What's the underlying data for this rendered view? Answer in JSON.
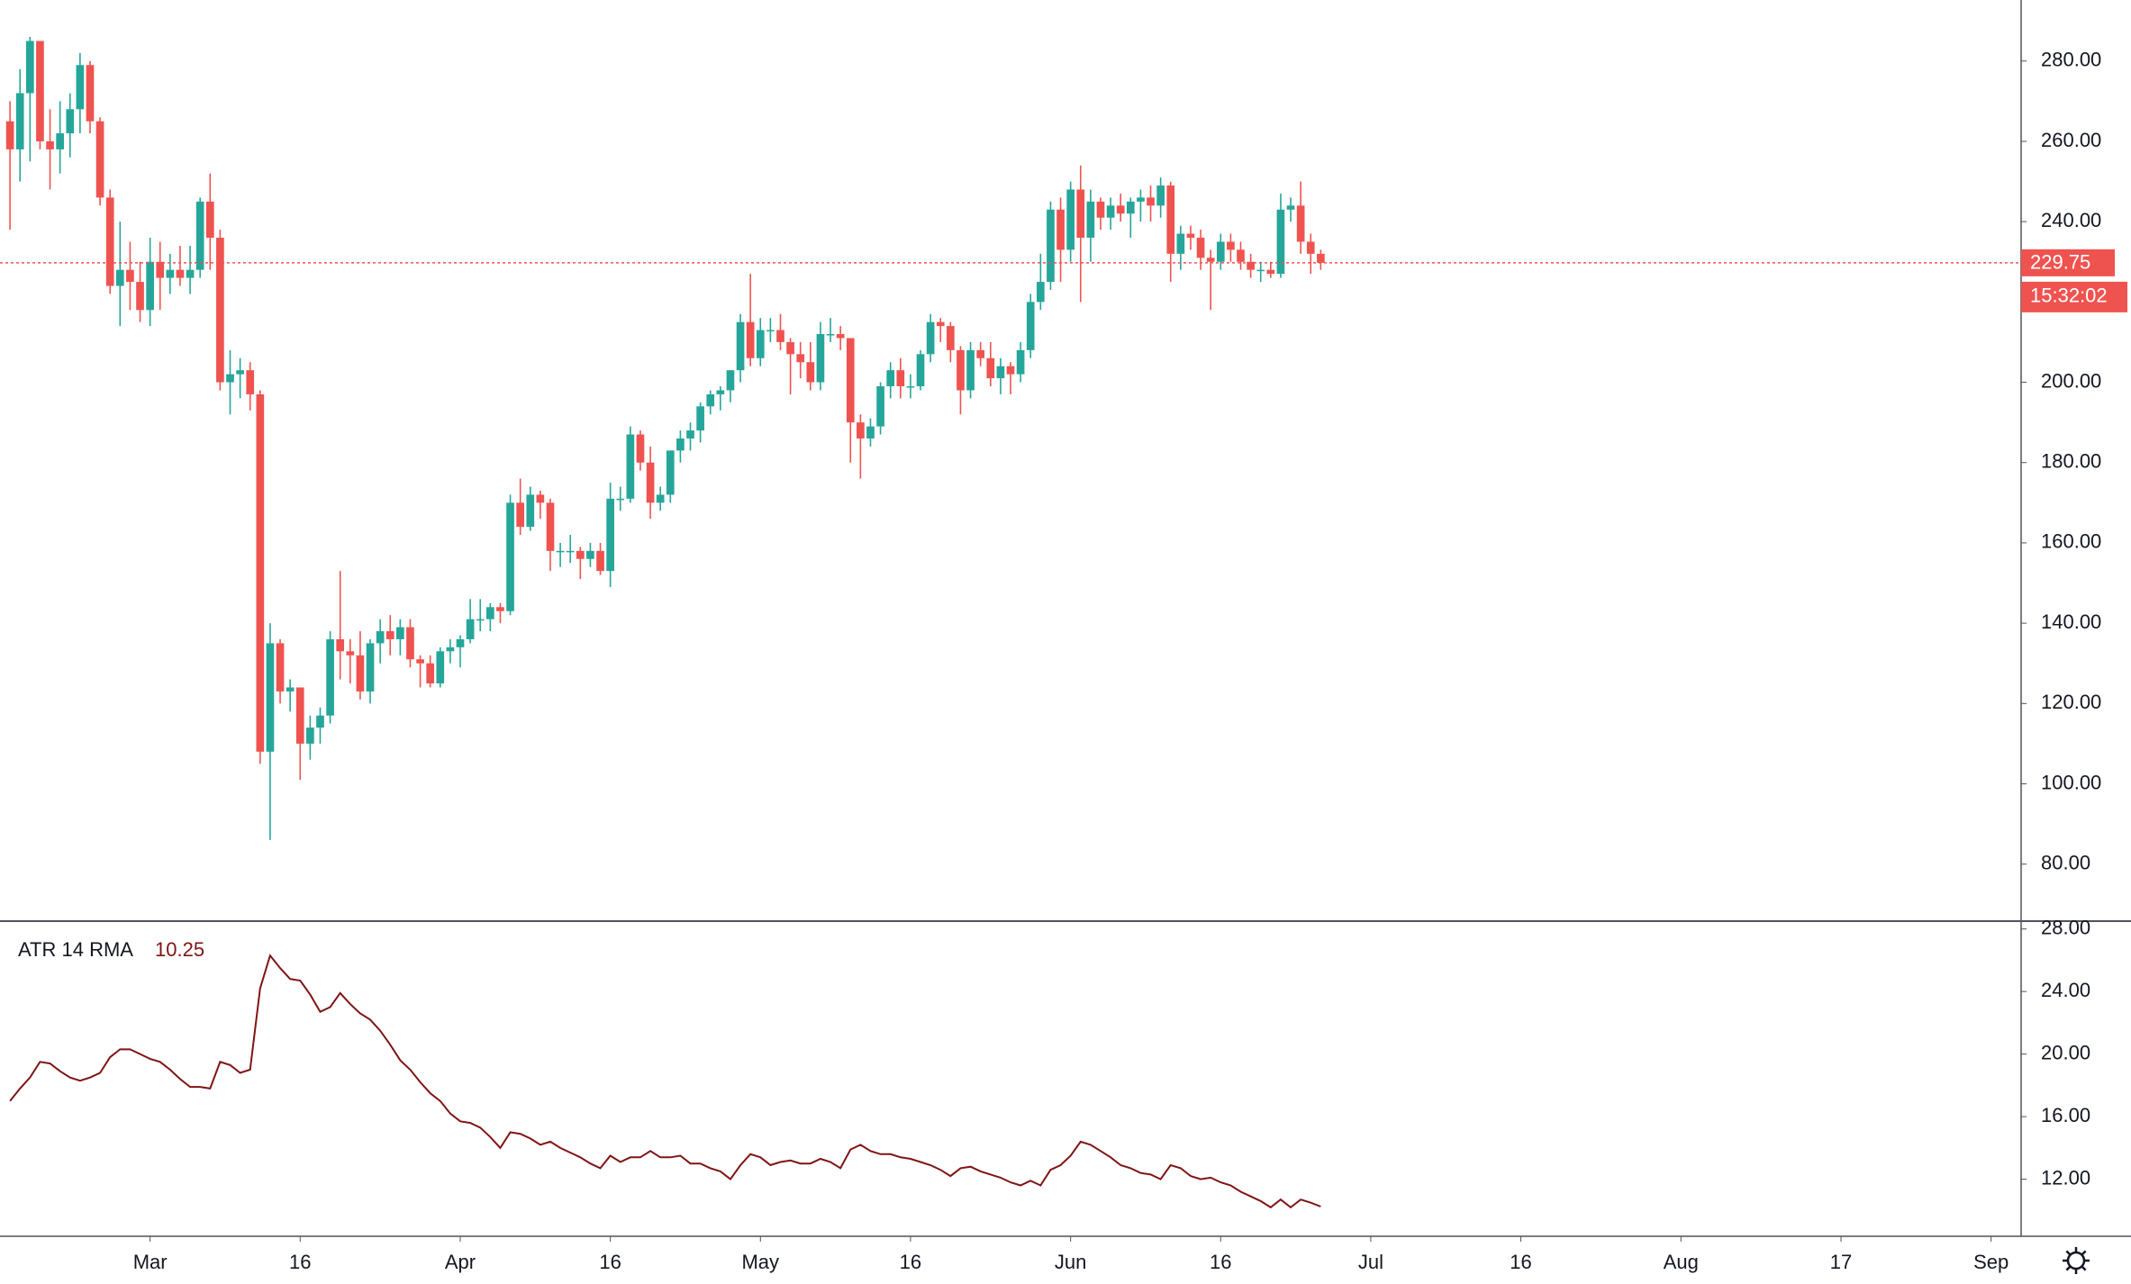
{
  "chart_data": [
    {
      "type": "candlestick",
      "x": [
        "02-16",
        "02-17",
        "02-18",
        "02-19",
        "02-20",
        "02-21",
        "02-22",
        "02-23",
        "02-24",
        "02-25",
        "02-26",
        "02-27",
        "02-28",
        "02-29",
        "03-01",
        "03-02",
        "03-03",
        "03-04",
        "03-05",
        "03-06",
        "03-07",
        "03-08",
        "03-09",
        "03-10",
        "03-11",
        "03-12",
        "03-13",
        "03-14",
        "03-15",
        "03-16",
        "03-17",
        "03-18",
        "03-19",
        "03-20",
        "03-21",
        "03-22",
        "03-23",
        "03-24",
        "03-25",
        "03-26",
        "03-27",
        "03-28",
        "03-29",
        "03-30",
        "03-31",
        "04-01",
        "04-02",
        "04-03",
        "04-04",
        "04-05",
        "04-06",
        "04-07",
        "04-08",
        "04-09",
        "04-10",
        "04-11",
        "04-12",
        "04-13",
        "04-14",
        "04-15",
        "04-16",
        "04-17",
        "04-18",
        "04-19",
        "04-20",
        "04-21",
        "04-22",
        "04-23",
        "04-24",
        "04-25",
        "04-26",
        "04-27",
        "04-28",
        "04-29",
        "04-30",
        "05-01",
        "05-02",
        "05-03",
        "05-04",
        "05-05",
        "05-06",
        "05-07",
        "05-08",
        "05-09",
        "05-10",
        "05-11",
        "05-12",
        "05-13",
        "05-14",
        "05-15",
        "05-16",
        "05-17",
        "05-18",
        "05-19",
        "05-20",
        "05-21",
        "05-22",
        "05-23",
        "05-24",
        "05-25",
        "05-26",
        "05-27",
        "05-28",
        "05-29",
        "05-30",
        "05-31",
        "06-01",
        "06-02",
        "06-03",
        "06-04",
        "06-05",
        "06-06",
        "06-07",
        "06-08",
        "06-09",
        "06-10",
        "06-11",
        "06-12",
        "06-13",
        "06-14",
        "06-15",
        "06-16",
        "06-17",
        "06-18",
        "06-19",
        "06-20",
        "06-21",
        "06-22",
        "06-23",
        "06-24",
        "06-25",
        "06-26"
      ],
      "open": [
        265,
        258,
        272,
        285,
        260,
        258,
        262,
        268,
        279,
        265,
        246,
        224,
        228,
        225,
        218,
        230,
        226,
        228,
        226,
        228,
        245,
        236,
        200,
        202,
        203,
        197,
        108,
        135,
        123,
        124,
        110,
        114,
        117,
        136,
        133,
        132,
        123,
        135,
        138,
        136,
        139,
        131,
        130,
        125,
        133,
        134,
        136,
        141,
        141,
        144,
        143,
        170,
        164,
        172,
        170,
        158,
        158,
        158,
        156,
        158,
        153,
        171,
        171,
        187,
        180,
        170,
        172,
        183,
        186,
        188,
        194,
        197,
        198,
        203,
        215,
        206,
        213,
        213,
        210,
        207,
        205,
        200,
        212,
        212,
        211,
        190,
        186,
        189,
        199,
        203,
        199,
        199,
        207,
        215,
        214,
        208,
        198,
        208,
        206,
        201,
        204,
        202,
        208,
        220,
        225,
        243,
        233,
        248,
        236,
        245,
        241,
        244,
        242,
        245,
        246,
        244,
        249,
        232,
        237,
        236,
        231,
        230,
        235,
        233,
        230,
        228,
        228,
        227,
        243,
        244,
        235,
        232
      ],
      "high": [
        270,
        278,
        286,
        285,
        268,
        270,
        272,
        282,
        280,
        266,
        248,
        240,
        235,
        230,
        236,
        235,
        232,
        234,
        234,
        246,
        252,
        238,
        208,
        206,
        205,
        198,
        140,
        136,
        126,
        124,
        117,
        119,
        138,
        153,
        136,
        138,
        136,
        141,
        142,
        141,
        141,
        132,
        132,
        134,
        136,
        137,
        146,
        146,
        145,
        145,
        172,
        176,
        174,
        173,
        171,
        160,
        162,
        159,
        160,
        160,
        175,
        174,
        189,
        188,
        184,
        174,
        183,
        188,
        190,
        195,
        198,
        199,
        203,
        217,
        227,
        216,
        216,
        217,
        211,
        210,
        210,
        215,
        216,
        214,
        211,
        192,
        191,
        200,
        205,
        206,
        202,
        208,
        217,
        216,
        215,
        209,
        210,
        210,
        210,
        206,
        205,
        210,
        222,
        232,
        245,
        246,
        250,
        254,
        248,
        246,
        246,
        247,
        246,
        248,
        249,
        251,
        250,
        239,
        239,
        238,
        233,
        237,
        237,
        235,
        232,
        230,
        230,
        247,
        246,
        250,
        237,
        233
      ],
      "low": [
        238,
        250,
        255,
        258,
        248,
        252,
        256,
        262,
        262,
        244,
        222,
        214,
        218,
        215,
        214,
        218,
        222,
        224,
        222,
        226,
        228,
        198,
        192,
        196,
        193,
        105,
        86,
        120,
        118,
        101,
        106,
        110,
        115,
        126,
        125,
        121,
        120,
        130,
        132,
        132,
        129,
        124,
        124,
        124,
        130,
        129,
        135,
        138,
        138,
        140,
        142,
        162,
        163,
        166,
        153,
        154,
        155,
        151,
        154,
        152,
        149,
        168,
        170,
        178,
        166,
        168,
        170,
        180,
        183,
        185,
        192,
        193,
        195,
        200,
        204,
        204,
        210,
        208,
        197,
        201,
        198,
        198,
        210,
        208,
        180,
        176,
        184,
        187,
        196,
        196,
        196,
        198,
        205,
        210,
        205,
        192,
        196,
        204,
        199,
        197,
        197,
        200,
        206,
        218,
        223,
        225,
        230,
        220,
        230,
        238,
        238,
        240,
        236,
        240,
        240,
        241,
        225,
        228,
        233,
        228,
        218,
        228,
        230,
        228,
        226,
        225,
        226,
        226,
        240,
        232,
        227,
        228
      ],
      "close": [
        258,
        272,
        285,
        260,
        258,
        262,
        268,
        279,
        265,
        246,
        224,
        228,
        225,
        218,
        230,
        226,
        228,
        226,
        228,
        245,
        236,
        200,
        202,
        203,
        197,
        108,
        135,
        123,
        124,
        110,
        114,
        117,
        136,
        133,
        132,
        123,
        135,
        138,
        136,
        139,
        131,
        130,
        125,
        133,
        134,
        136,
        141,
        141,
        144,
        143,
        170,
        164,
        172,
        170,
        158,
        158,
        158,
        156,
        158,
        153,
        171,
        171,
        187,
        180,
        170,
        172,
        183,
        186,
        188,
        194,
        197,
        198,
        203,
        215,
        206,
        213,
        213,
        210,
        207,
        205,
        200,
        212,
        212,
        211,
        190,
        186,
        189,
        199,
        203,
        199,
        199,
        207,
        215,
        214,
        208,
        198,
        208,
        206,
        201,
        204,
        202,
        208,
        220,
        225,
        243,
        233,
        248,
        236,
        245,
        241,
        244,
        242,
        245,
        246,
        244,
        249,
        232,
        237,
        236,
        231,
        230,
        235,
        233,
        230,
        228,
        228,
        227,
        243,
        244,
        235,
        232,
        229.75
      ],
      "up_color": "#26a69a",
      "down_color": "#ef5350",
      "last_price_color": "#ef5350",
      "countdown": "15:32:02",
      "xlim": [
        "02-15",
        "09-04"
      ],
      "xticks": [
        {
          "value": "03-01",
          "label": "Mar"
        },
        {
          "value": "03-16",
          "label": "16"
        },
        {
          "value": "04-01",
          "label": "Apr"
        },
        {
          "value": "04-16",
          "label": "16"
        },
        {
          "value": "05-01",
          "label": "May"
        },
        {
          "value": "05-16",
          "label": "16"
        },
        {
          "value": "06-01",
          "label": "Jun"
        },
        {
          "value": "06-16",
          "label": "16"
        },
        {
          "value": "07-01",
          "label": "Jul"
        },
        {
          "value": "07-16",
          "label": "16"
        },
        {
          "value": "08-01",
          "label": "Aug"
        },
        {
          "value": "08-17",
          "label": "17"
        },
        {
          "value": "09-01",
          "label": "Sep"
        }
      ],
      "ylim": [
        65.8,
        295.2
      ],
      "yticks": [
        {
          "value": 80,
          "label": "80.00"
        },
        {
          "value": 100,
          "label": "100.00"
        },
        {
          "value": 120,
          "label": "120.00"
        },
        {
          "value": 140,
          "label": "140.00"
        },
        {
          "value": 160,
          "label": "160.00"
        },
        {
          "value": 180,
          "label": "180.00"
        },
        {
          "value": 200,
          "label": "200.00"
        },
        {
          "value": 220,
          "label": "220.00"
        },
        {
          "value": 240,
          "label": "240.00"
        },
        {
          "value": 260,
          "label": "260.00"
        },
        {
          "value": 280,
          "label": "280.00"
        }
      ]
    },
    {
      "type": "line",
      "name": "ATR 14 RMA",
      "color": "#801414",
      "values": [
        17.0,
        17.8,
        18.5,
        19.5,
        19.4,
        18.9,
        18.5,
        18.3,
        18.5,
        18.8,
        19.8,
        20.3,
        20.3,
        20.0,
        19.7,
        19.5,
        19.0,
        18.4,
        17.9,
        17.9,
        17.8,
        19.5,
        19.3,
        18.8,
        19.0,
        24.2,
        26.3,
        25.5,
        24.8,
        24.7,
        23.8,
        22.7,
        23.0,
        23.9,
        23.2,
        22.6,
        22.2,
        21.5,
        20.6,
        19.6,
        19.0,
        18.2,
        17.5,
        17.0,
        16.2,
        15.7,
        15.6,
        15.3,
        14.7,
        14.0,
        15.0,
        14.9,
        14.6,
        14.2,
        14.4,
        14.0,
        13.7,
        13.4,
        13.0,
        12.7,
        13.5,
        13.1,
        13.4,
        13.4,
        13.8,
        13.4,
        13.4,
        13.5,
        13.0,
        13.0,
        12.7,
        12.5,
        12.0,
        12.9,
        13.6,
        13.4,
        12.9,
        13.1,
        13.2,
        13.0,
        13.0,
        13.3,
        13.1,
        12.7,
        13.9,
        14.2,
        13.8,
        13.6,
        13.6,
        13.4,
        13.3,
        13.1,
        12.9,
        12.6,
        12.2,
        12.7,
        12.8,
        12.5,
        12.3,
        12.1,
        11.8,
        11.6,
        11.9,
        11.6,
        12.6,
        12.9,
        13.5,
        14.4,
        14.2,
        13.8,
        13.4,
        12.9,
        12.7,
        12.4,
        12.3,
        12.0,
        12.9,
        12.7,
        12.2,
        12.0,
        12.1,
        11.8,
        11.6,
        11.2,
        10.9,
        10.6,
        10.2,
        10.7,
        10.2,
        10.7,
        10.5,
        10.25
      ],
      "ylim": [
        8.35,
        28.5
      ],
      "yticks": [
        {
          "value": 12,
          "label": "12.00"
        },
        {
          "value": 16,
          "label": "16.00"
        },
        {
          "value": 20,
          "label": "20.00"
        },
        {
          "value": 24,
          "label": "24.00"
        },
        {
          "value": 28,
          "label": "28.00"
        }
      ]
    }
  ]
}
